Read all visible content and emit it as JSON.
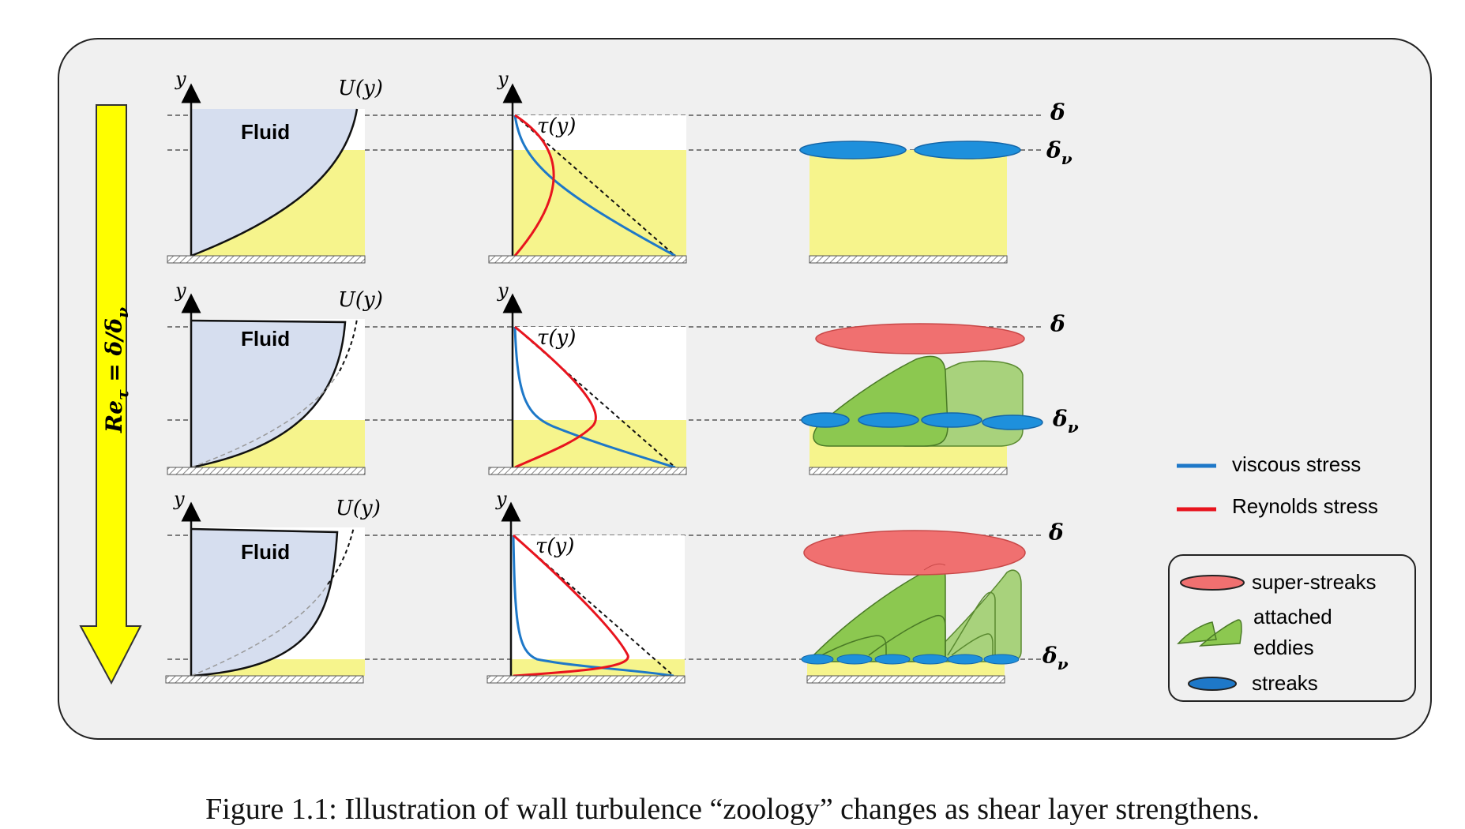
{
  "labels": {
    "y": "y",
    "fluid": "Fluid",
    "u_of_y": "U(y)",
    "tau_of_y": "τ(y)",
    "delta": "δ",
    "delta_v": "δ",
    "delta_v_sub": "ν",
    "arrow_label": "Re",
    "arrow_label_sub": "τ",
    "arrow_label_rest": " = δ/δ",
    "arrow_label_sub2": "ν"
  },
  "legend": {
    "viscous": "viscous stress",
    "reynolds": "Reynolds stress",
    "super_streaks": "super-streaks",
    "attached_line1": "attached",
    "attached_line2": "eddies",
    "streaks": "streaks"
  },
  "colors": {
    "blue_line": "#1e78c8",
    "red_line": "#e8141e",
    "fluid_fill": "#d6deef",
    "yellow_fill": "#f6f48c",
    "streak_fill": "#1e90dc",
    "superstreak_fill": "#f07070",
    "eddy_fill": "#8cc850",
    "arrow_fill": "#ffff00"
  },
  "caption": "Figure 1.1: Illustration of wall turbulence “zoology” changes as shear layer strengthens."
}
